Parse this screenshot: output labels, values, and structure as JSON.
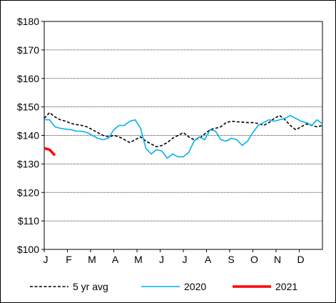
{
  "chart_data": {
    "type": "line",
    "title": "",
    "xlabel": "",
    "ylabel": "",
    "ylim": [
      100,
      180
    ],
    "y_ticks": [
      100,
      110,
      120,
      130,
      140,
      150,
      160,
      170,
      180
    ],
    "y_tick_labels": [
      "$100",
      "$110",
      "$120",
      "$130",
      "$140",
      "$150",
      "$160",
      "$170",
      "$180"
    ],
    "x_domain": [
      1,
      53
    ],
    "x_unit": "week of year",
    "month_labels": [
      "J",
      "F",
      "M",
      "A",
      "M",
      "J",
      "J",
      "A",
      "S",
      "O",
      "N",
      "D"
    ],
    "grid": "horizontal dotted",
    "legend": "bottom",
    "series": [
      {
        "name": "5 yr avg",
        "color": "#000000",
        "style": "dashed",
        "x": [
          1,
          2,
          3,
          4,
          5,
          6,
          7,
          8,
          9,
          10,
          11,
          12,
          13,
          14,
          15,
          16,
          17,
          18,
          19,
          20,
          21,
          22,
          23,
          24,
          25,
          26,
          27,
          28,
          29,
          30,
          31,
          32,
          33,
          34,
          35,
          36,
          37,
          38,
          39,
          40,
          41,
          42,
          43,
          44,
          45,
          46,
          47,
          48,
          49,
          50,
          51,
          52,
          53
        ],
        "values": [
          146,
          148,
          146.5,
          145.5,
          145,
          144.2,
          143.8,
          143.5,
          143,
          142,
          141,
          140,
          139.5,
          140,
          139.5,
          138.5,
          137.5,
          138.5,
          139.5,
          138,
          137,
          136,
          136.5,
          137.5,
          139,
          140,
          141,
          139.5,
          138.5,
          139,
          140.5,
          142,
          142.5,
          143,
          144.5,
          145,
          144.8,
          144.7,
          144.5,
          144.5,
          144.2,
          143.5,
          144.5,
          146,
          147,
          145.5,
          143.5,
          142,
          143,
          144,
          143.5,
          143,
          143.5
        ]
      },
      {
        "name": "2020",
        "color": "#00b0f0",
        "style": "solid",
        "x": [
          1,
          2,
          3,
          4,
          5,
          6,
          7,
          8,
          9,
          10,
          11,
          12,
          13,
          14,
          15,
          16,
          17,
          18,
          19,
          20,
          21,
          22,
          23,
          24,
          25,
          26,
          27,
          28,
          29,
          30,
          31,
          32,
          33,
          34,
          35,
          36,
          37,
          38,
          39,
          40,
          41,
          42,
          43,
          44,
          45,
          46,
          47,
          48,
          49,
          50,
          51,
          52,
          53
        ],
        "values": [
          145.5,
          145.5,
          143,
          142.5,
          142.2,
          142,
          141.5,
          141.5,
          141,
          140,
          139,
          138.5,
          139,
          142,
          143.5,
          143.5,
          145,
          145.5,
          142.5,
          135.5,
          133.5,
          135,
          134.5,
          132,
          133.5,
          132.5,
          132.5,
          134,
          138,
          139.5,
          138.5,
          142,
          141.5,
          138.5,
          138,
          139,
          138.5,
          136.5,
          138,
          141,
          143.5,
          144.5,
          145.5,
          145,
          145.5,
          146,
          147,
          146,
          145,
          144.5,
          143.5,
          145.5,
          144
        ]
      },
      {
        "name": "2021",
        "color": "#ff0000",
        "style": "solid-thick",
        "x": [
          1,
          2,
          3
        ],
        "values": [
          135.5,
          135,
          133
        ]
      }
    ]
  }
}
